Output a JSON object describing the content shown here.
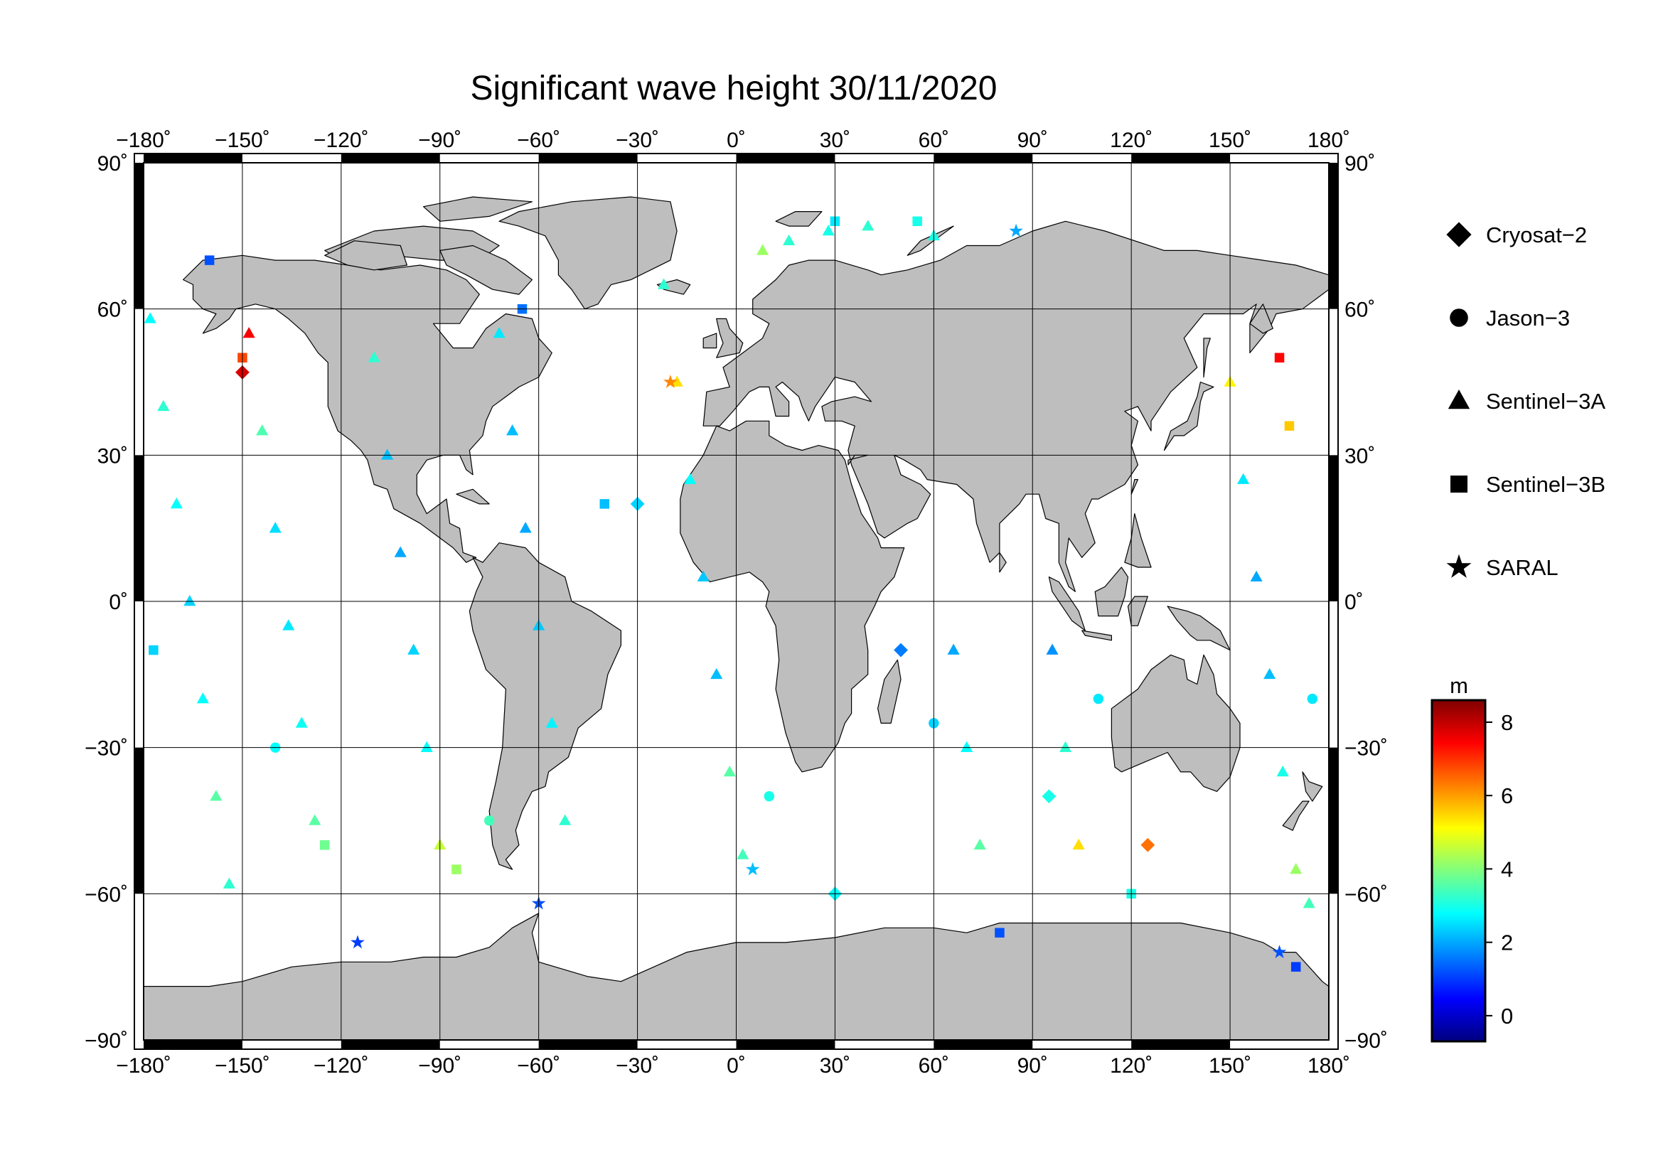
{
  "title": "Significant wave height 30/11/2020",
  "map": {
    "projection": "equirectangular",
    "lon_range": [
      -180,
      180
    ],
    "lat_range": [
      -90,
      90
    ],
    "lon_ticks": [
      "−180˚",
      "−150˚",
      "−120˚",
      "−90˚",
      "−60˚",
      "−30˚",
      "0˚",
      "30˚",
      "60˚",
      "90˚",
      "120˚",
      "150˚",
      "180˚"
    ],
    "lat_ticks": [
      "90˚",
      "60˚",
      "30˚",
      "0˚",
      "−30˚",
      "−60˚",
      "−90˚"
    ],
    "land_color": "#bebebe",
    "ocean_color": "#ffffff",
    "grid": true
  },
  "legend": {
    "items": [
      {
        "label": "Cryosat−2",
        "symbol": "diamond"
      },
      {
        "label": "Jason−3",
        "symbol": "circle"
      },
      {
        "label": "Sentinel−3A",
        "symbol": "triangle"
      },
      {
        "label": "Sentinel−3B",
        "symbol": "square"
      },
      {
        "label": "SARAL",
        "symbol": "star"
      }
    ]
  },
  "colorbar": {
    "unit": "m",
    "min": -0.7,
    "max": 8.6,
    "tick_labels": [
      "0",
      "2",
      "4",
      "6",
      "8"
    ],
    "colormap": [
      "#00007f",
      "#0000ff",
      "#007fff",
      "#00ffff",
      "#7fff7f",
      "#ffff00",
      "#ff7f00",
      "#ff0000",
      "#7f0000"
    ]
  },
  "chart_data": {
    "type": "scatter",
    "title": "Significant wave height 30/11/2020",
    "xlabel": "",
    "ylabel": "",
    "xlim": [
      -180,
      180
    ],
    "ylim": [
      -90,
      90
    ],
    "value_unit": "m",
    "series": [
      {
        "name": "Sentinel−3A",
        "symbol": "triangle",
        "points": [
          [
            -178,
            58,
            2.8
          ],
          [
            -174,
            40,
            3.2
          ],
          [
            -170,
            20,
            2.8
          ],
          [
            -166,
            0,
            2.4
          ],
          [
            -162,
            -20,
            2.8
          ],
          [
            -158,
            -40,
            3.6
          ],
          [
            -154,
            -58,
            3.2
          ],
          [
            -148,
            55,
            7.5
          ],
          [
            -144,
            35,
            3.5
          ],
          [
            -140,
            15,
            2.5
          ],
          [
            -136,
            -5,
            2.6
          ],
          [
            -132,
            -25,
            2.9
          ],
          [
            -128,
            -45,
            3.6
          ],
          [
            -110,
            50,
            3.2
          ],
          [
            -106,
            30,
            2.2
          ],
          [
            -102,
            10,
            2.0
          ],
          [
            -98,
            -10,
            2.4
          ],
          [
            -94,
            -30,
            2.8
          ],
          [
            -90,
            -50,
            4.6
          ],
          [
            -72,
            55,
            2.6
          ],
          [
            -68,
            35,
            2.2
          ],
          [
            -64,
            15,
            2.0
          ],
          [
            -60,
            -5,
            2.3
          ],
          [
            -56,
            -25,
            2.7
          ],
          [
            -52,
            -45,
            3.2
          ],
          [
            -22,
            65,
            3.2
          ],
          [
            -18,
            45,
            5.4
          ],
          [
            -14,
            25,
            2.8
          ],
          [
            -10,
            5,
            2.3
          ],
          [
            -6,
            -15,
            2.2
          ],
          [
            -2,
            -35,
            3.6
          ],
          [
            2,
            -52,
            3.4
          ],
          [
            8,
            72,
            4.2
          ],
          [
            16,
            74,
            3.2
          ],
          [
            28,
            76,
            3.0
          ],
          [
            40,
            77,
            3.2
          ],
          [
            60,
            75,
            3.0
          ],
          [
            66,
            -10,
            2.0
          ],
          [
            70,
            -30,
            2.8
          ],
          [
            74,
            -50,
            3.6
          ],
          [
            96,
            -10,
            1.8
          ],
          [
            100,
            -30,
            3.2
          ],
          [
            104,
            -50,
            5.4
          ],
          [
            150,
            45,
            5.2
          ],
          [
            154,
            25,
            2.6
          ],
          [
            158,
            5,
            2.0
          ],
          [
            162,
            -15,
            2.2
          ],
          [
            166,
            -35,
            3.0
          ],
          [
            170,
            -55,
            4.2
          ],
          [
            174,
            -62,
            3.4
          ]
        ]
      },
      {
        "name": "Sentinel−3B",
        "symbol": "square",
        "points": [
          [
            -177,
            -10,
            2.4
          ],
          [
            -160,
            70,
            1.2
          ],
          [
            -150,
            50,
            6.8
          ],
          [
            -125,
            -50,
            3.8
          ],
          [
            -85,
            -55,
            4.2
          ],
          [
            -65,
            60,
            1.5
          ],
          [
            -40,
            20,
            2.2
          ],
          [
            30,
            78,
            2.6
          ],
          [
            55,
            78,
            3.0
          ],
          [
            80,
            -68,
            1.2
          ],
          [
            120,
            -60,
            3.0
          ],
          [
            165,
            50,
            7.4
          ],
          [
            168,
            36,
            5.6
          ],
          [
            170,
            -75,
            1.0
          ]
        ]
      },
      {
        "name": "SARAL",
        "symbol": "star",
        "points": [
          [
            -115,
            -70,
            1.0
          ],
          [
            -60,
            -62,
            1.2
          ],
          [
            -20,
            45,
            6.2
          ],
          [
            5,
            -55,
            2.2
          ],
          [
            85,
            76,
            2.0
          ],
          [
            165,
            -72,
            1.2
          ]
        ]
      },
      {
        "name": "Cryosat−2",
        "symbol": "diamond",
        "points": [
          [
            -150,
            47,
            7.8
          ],
          [
            -30,
            20,
            2.4
          ],
          [
            30,
            -60,
            2.8
          ],
          [
            50,
            -10,
            1.6
          ],
          [
            95,
            -40,
            3.0
          ],
          [
            125,
            -50,
            6.4
          ]
        ]
      },
      {
        "name": "Jason−3",
        "symbol": "circle",
        "points": [
          [
            -140,
            -30,
            2.8
          ],
          [
            -75,
            -45,
            3.4
          ],
          [
            10,
            -40,
            3.0
          ],
          [
            60,
            -25,
            2.4
          ],
          [
            110,
            -20,
            2.6
          ],
          [
            175,
            -20,
            2.6
          ]
        ]
      }
    ]
  }
}
